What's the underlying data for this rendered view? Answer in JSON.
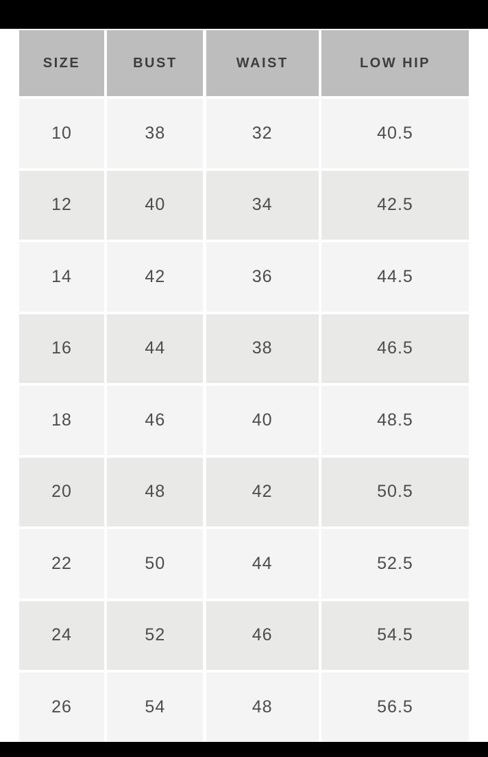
{
  "colors": {
    "letterbox": "#000000",
    "header_bg": "#bdbdbd",
    "row_light": "#f3f4f3",
    "row_dark": "#e9e9e8",
    "header_text": "#3d3d3d",
    "cell_text": "#4c4c4c"
  },
  "table": {
    "headers": [
      "SIZE",
      "BUST",
      "WAIST",
      "LOW HIP"
    ],
    "rows": [
      [
        "10",
        "38",
        "32",
        "40.5"
      ],
      [
        "12",
        "40",
        "34",
        "42.5"
      ],
      [
        "14",
        "42",
        "36",
        "44.5"
      ],
      [
        "16",
        "44",
        "38",
        "46.5"
      ],
      [
        "18",
        "46",
        "40",
        "48.5"
      ],
      [
        "20",
        "48",
        "42",
        "50.5"
      ],
      [
        "22",
        "50",
        "44",
        "52.5"
      ],
      [
        "24",
        "52",
        "46",
        "54.5"
      ],
      [
        "26",
        "54",
        "48",
        "56.5"
      ]
    ]
  },
  "chart_data": {
    "type": "table",
    "columns": [
      "SIZE",
      "BUST",
      "WAIST",
      "LOW HIP"
    ],
    "rows": [
      [
        10,
        38,
        32,
        40.5
      ],
      [
        12,
        40,
        34,
        42.5
      ],
      [
        14,
        42,
        36,
        44.5
      ],
      [
        16,
        44,
        38,
        46.5
      ],
      [
        18,
        46,
        40,
        48.5
      ],
      [
        20,
        48,
        42,
        50.5
      ],
      [
        22,
        50,
        44,
        52.5
      ],
      [
        24,
        52,
        46,
        54.5
      ],
      [
        26,
        54,
        48,
        56.5
      ]
    ],
    "title": "",
    "layout_hints": {
      "header_row_shaded": true,
      "alternating_row_shading": true,
      "cell_alignment": "center"
    }
  }
}
